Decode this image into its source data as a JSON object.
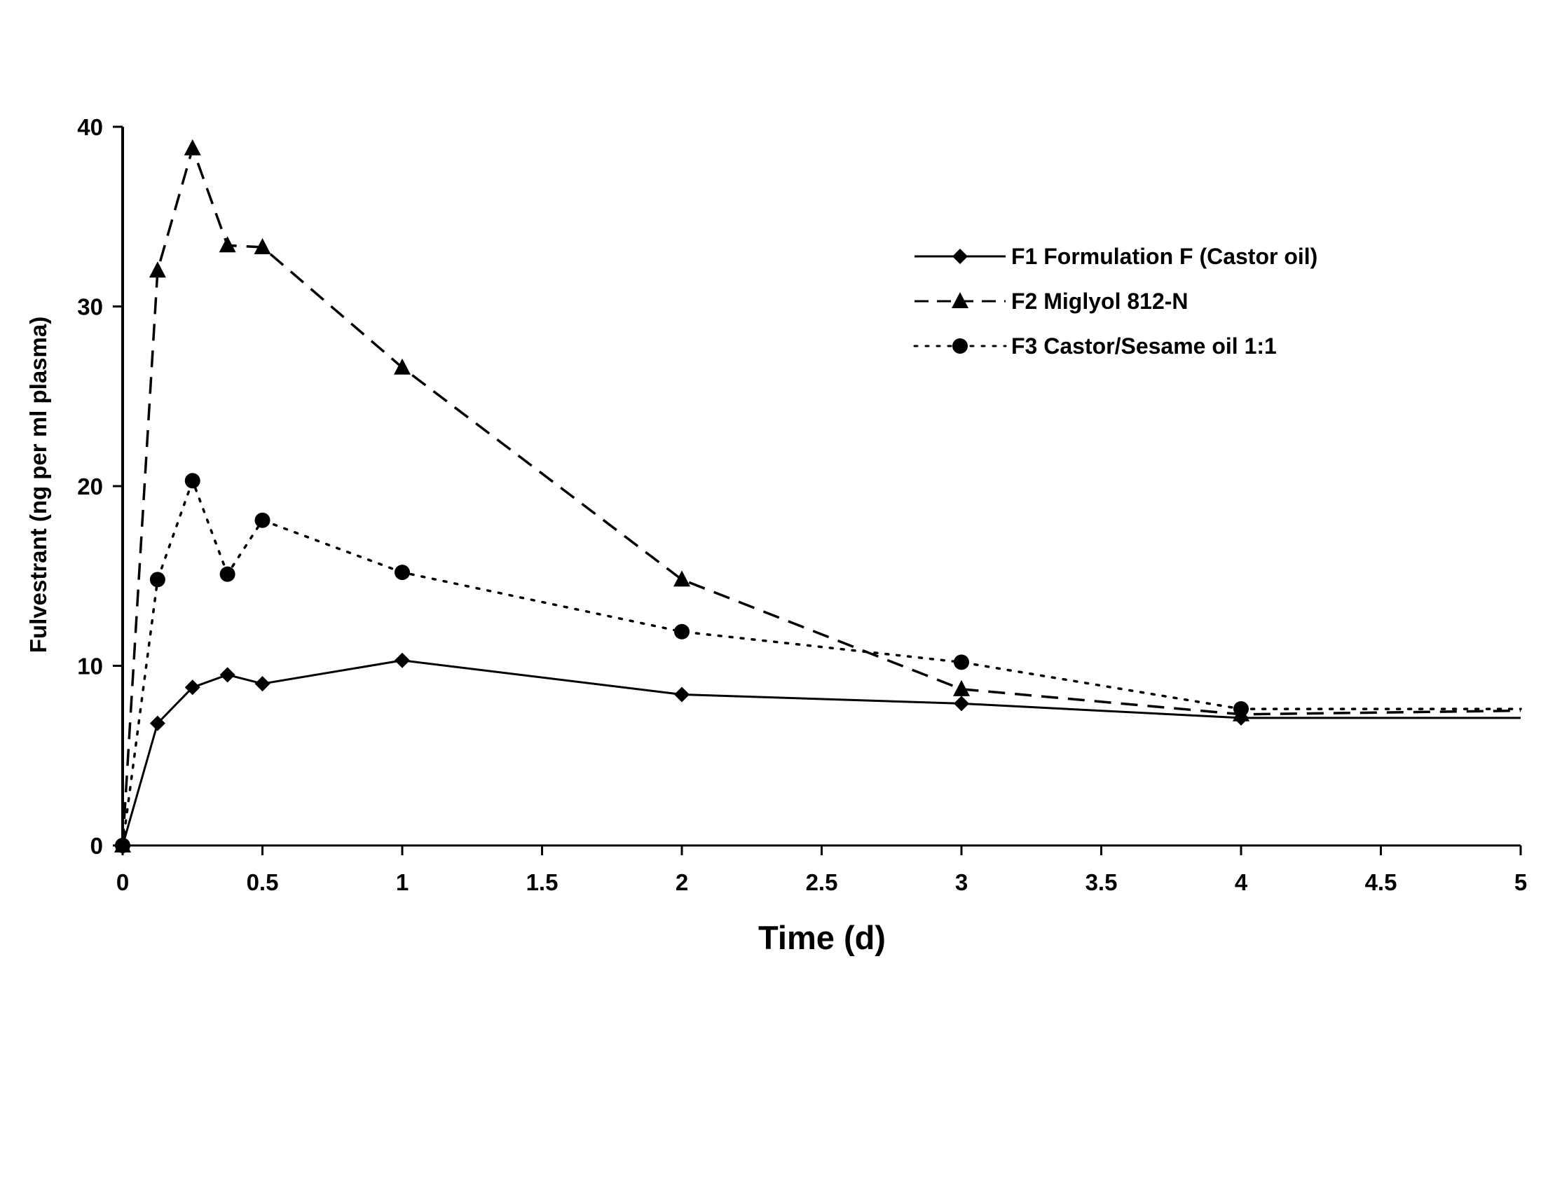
{
  "chart_data": {
    "type": "line",
    "xlabel": "Time (d)",
    "ylabel": "Fulvestrant (ng per ml plasma)",
    "xlim": [
      0,
      5
    ],
    "ylim": [
      0,
      40
    ],
    "x_ticks": [
      "0",
      "0.5",
      "1",
      "1.5",
      "2",
      "2.5",
      "3",
      "3.5",
      "4",
      "4.5",
      "5"
    ],
    "y_ticks": [
      "0",
      "10",
      "20",
      "30",
      "40"
    ],
    "grid": false,
    "legend_position": "top-right",
    "series": [
      {
        "name": "F1 Formulation F (Castor oil)",
        "line_style": "solid",
        "marker": "diamond",
        "color": "#000000",
        "x": [
          0,
          0.125,
          0.25,
          0.375,
          0.5,
          1,
          2,
          3,
          4,
          5
        ],
        "y": [
          0,
          6.8,
          8.8,
          9.5,
          9.0,
          10.3,
          8.4,
          7.9,
          7.1,
          7.1
        ]
      },
      {
        "name": "F2 Miglyol 812-N",
        "line_style": "dashed",
        "marker": "triangle",
        "color": "#000000",
        "x": [
          0,
          0.125,
          0.25,
          0.375,
          0.5,
          1,
          2,
          3,
          4,
          5
        ],
        "y": [
          0,
          32,
          38.8,
          33.4,
          33.3,
          26.6,
          14.8,
          8.7,
          7.3,
          7.5
        ]
      },
      {
        "name": "F3 Castor/Sesame oil 1:1",
        "line_style": "dotted",
        "marker": "circle",
        "color": "#000000",
        "x": [
          0,
          0.125,
          0.25,
          0.375,
          0.5,
          1,
          2,
          3,
          4,
          5
        ],
        "y": [
          0,
          14.8,
          20.3,
          15.1,
          18.1,
          15.2,
          11.9,
          10.2,
          7.6,
          7.6
        ]
      }
    ]
  }
}
